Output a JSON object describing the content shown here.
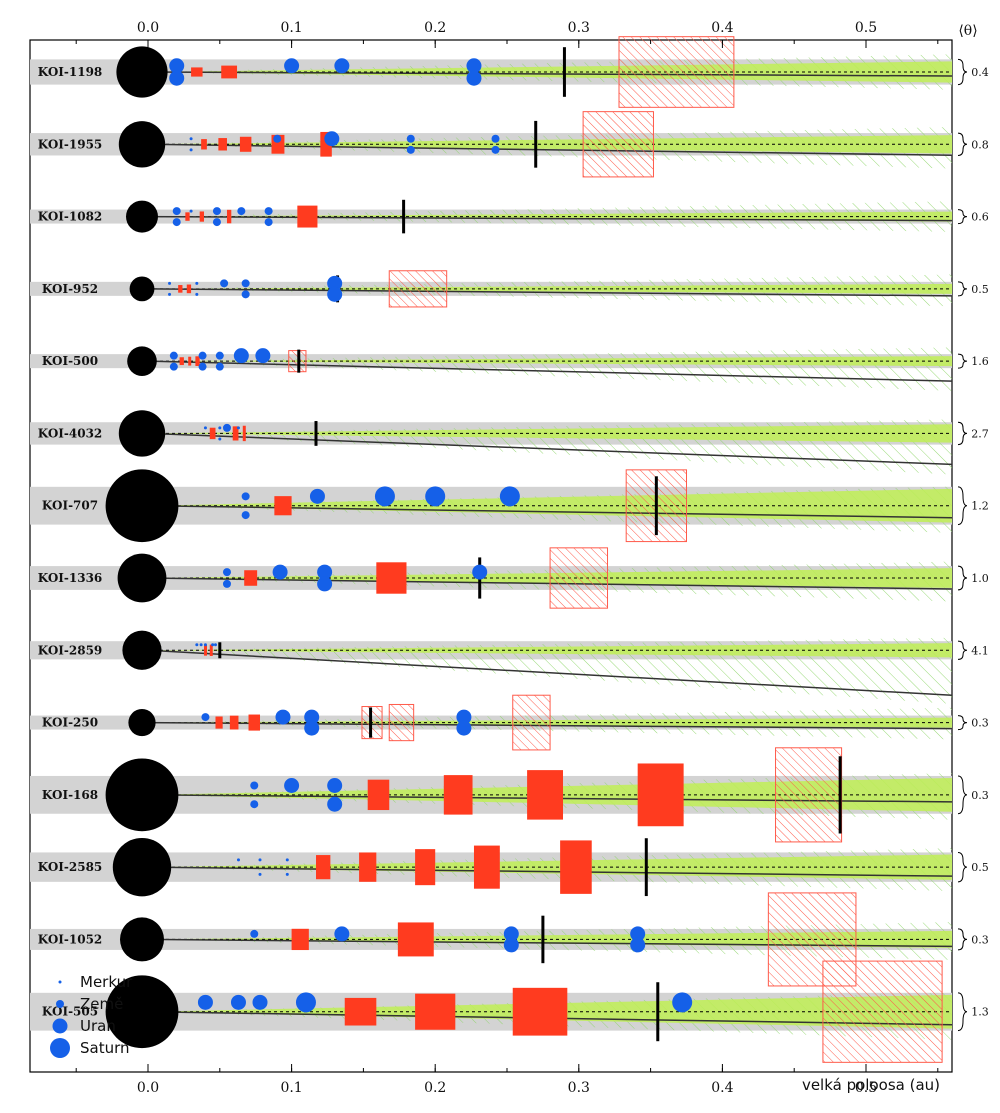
{
  "chart_data": {
    "type": "scatter",
    "title": "",
    "xlabel": "velká poloosa (au)",
    "ylabel": "",
    "xlim": [
      -0.08,
      0.56
    ],
    "x_ticks": [
      0.0,
      0.1,
      0.2,
      0.3,
      0.4,
      0.5
    ],
    "x_tick_labels": [
      "0.0",
      "0.1",
      "0.2",
      "0.3",
      "0.4",
      "0.5"
    ],
    "theta_header": "⟨θ⟩",
    "colors": {
      "band": "#d3d3d3",
      "zone": "#bfee55",
      "box": "#ff3b1f",
      "hatch": "#ff5a4a",
      "planet": "#1560e8",
      "star": "#000000",
      "green_hatch": "#8fd66a"
    },
    "legend": [
      {
        "label": "Merkur",
        "size": 1
      },
      {
        "label": "Země",
        "size": 2
      },
      {
        "label": "Uran",
        "size": 3
      },
      {
        "label": "Saturn",
        "size": 4
      }
    ],
    "systems": [
      {
        "name": "KOI-1198",
        "theta": "0.4",
        "star": 1.8,
        "planets": [
          [
            0.02,
            3
          ],
          [
            0.02,
            3
          ],
          [
            0.1,
            3
          ],
          [
            0.135,
            3
          ],
          [
            0.227,
            3
          ],
          [
            0.227,
            3
          ]
        ],
        "boxes": [
          [
            0.03,
            0.038
          ],
          [
            0.051,
            0.062
          ]
        ],
        "hz": [
          0.328,
          0.408
        ],
        "edge": 0.29,
        "lean": 0.0
      },
      {
        "name": "KOI-1955",
        "theta": "0.8",
        "star": 1.6,
        "planets": [
          [
            0.03,
            1
          ],
          [
            0.03,
            1
          ],
          [
            0.09,
            2
          ],
          [
            0.128,
            3
          ],
          [
            0.183,
            2
          ],
          [
            0.183,
            2
          ],
          [
            0.242,
            2
          ],
          [
            0.242,
            2
          ]
        ],
        "boxes": [
          [
            0.037,
            0.041
          ],
          [
            0.049,
            0.055
          ],
          [
            0.064,
            0.072
          ],
          [
            0.086,
            0.095
          ],
          [
            0.12,
            0.128
          ]
        ],
        "hz": [
          0.303,
          0.352
        ],
        "edge": 0.27,
        "lean": 0.7
      },
      {
        "name": "KOI-1082",
        "theta": "0.6",
        "star": 1.0,
        "planets": [
          [
            0.02,
            2
          ],
          [
            0.02,
            2
          ],
          [
            0.03,
            1
          ],
          [
            0.048,
            2
          ],
          [
            0.048,
            2
          ],
          [
            0.065,
            2
          ],
          [
            0.084,
            2
          ],
          [
            0.084,
            2
          ]
        ],
        "boxes": [
          [
            0.026,
            0.029
          ],
          [
            0.036,
            0.039
          ],
          [
            0.055,
            0.058
          ],
          [
            0.104,
            0.118
          ]
        ],
        "hz": null,
        "edge": 0.178,
        "lean": 0.0
      },
      {
        "name": "KOI-952",
        "theta": "0.5",
        "star": 0.7,
        "planets": [
          [
            0.015,
            1
          ],
          [
            0.015,
            1
          ],
          [
            0.034,
            1
          ],
          [
            0.034,
            1
          ],
          [
            0.053,
            2
          ],
          [
            0.068,
            2
          ],
          [
            0.068,
            2
          ],
          [
            0.13,
            3
          ],
          [
            0.13,
            3
          ]
        ],
        "boxes": [
          [
            0.021,
            0.024
          ],
          [
            0.027,
            0.03
          ]
        ],
        "hz": [
          0.168,
          0.208
        ],
        "edge": 0.132,
        "lean": 0.3
      },
      {
        "name": "KOI-500",
        "theta": "1.6",
        "star": 0.9,
        "planets": [
          [
            0.018,
            2
          ],
          [
            0.018,
            2
          ],
          [
            0.038,
            2
          ],
          [
            0.038,
            2
          ],
          [
            0.05,
            2
          ],
          [
            0.05,
            2
          ],
          [
            0.065,
            3
          ],
          [
            0.08,
            3
          ]
        ],
        "boxes": [
          [
            0.022,
            0.025
          ],
          [
            0.028,
            0.03
          ],
          [
            0.033,
            0.036
          ]
        ],
        "hz": [
          0.098,
          0.11
        ],
        "edge": 0.105,
        "lean": 1.6
      },
      {
        "name": "KOI-4032",
        "theta": "2.7",
        "star": 1.6,
        "planets": [
          [
            0.04,
            1
          ],
          [
            0.05,
            1
          ],
          [
            0.05,
            1
          ],
          [
            0.055,
            2
          ],
          [
            0.063,
            1
          ]
        ],
        "boxes": [
          [
            0.043,
            0.047
          ],
          [
            0.059,
            0.063
          ],
          [
            0.066,
            0.068
          ]
        ],
        "hz": null,
        "edge": 0.117,
        "lean": 2.7
      },
      {
        "name": "KOI-707",
        "theta": "1.2",
        "star": 2.7,
        "planets": [
          [
            0.068,
            2
          ],
          [
            0.068,
            2
          ],
          [
            0.118,
            3
          ],
          [
            0.165,
            4
          ],
          [
            0.2,
            4
          ],
          [
            0.252,
            4
          ]
        ],
        "boxes": [
          [
            0.088,
            0.1
          ]
        ],
        "hz": [
          0.333,
          0.375
        ],
        "edge": 0.354,
        "lean": 0.8
      },
      {
        "name": "KOI-1336",
        "theta": "1.0",
        "star": 1.7,
        "planets": [
          [
            0.055,
            2
          ],
          [
            0.055,
            2
          ],
          [
            0.092,
            3
          ],
          [
            0.123,
            3
          ],
          [
            0.123,
            3
          ],
          [
            0.231,
            3
          ]
        ],
        "boxes": [
          [
            0.067,
            0.076
          ],
          [
            0.159,
            0.18
          ]
        ],
        "hz": [
          0.28,
          0.32
        ],
        "edge": 0.231,
        "lean": 0.7
      },
      {
        "name": "KOI-2859",
        "theta": "4.1",
        "star": 1.3,
        "planets": [
          [
            0.034,
            1
          ],
          [
            0.037,
            1
          ],
          [
            0.04,
            1
          ],
          [
            0.045,
            1
          ],
          [
            0.047,
            1
          ]
        ],
        "boxes": [
          [
            0.039,
            0.041
          ],
          [
            0.043,
            0.045
          ]
        ],
        "hz": null,
        "edge": 0.05,
        "lean": 4.1
      },
      {
        "name": "KOI-250",
        "theta": "0.3",
        "star": 0.8,
        "planets": [
          [
            0.04,
            2
          ],
          [
            0.094,
            3
          ],
          [
            0.114,
            3
          ],
          [
            0.114,
            3
          ],
          [
            0.22,
            3
          ],
          [
            0.22,
            3
          ]
        ],
        "boxes": [
          [
            0.047,
            0.052
          ],
          [
            0.057,
            0.063
          ],
          [
            0.07,
            0.078
          ]
        ],
        "hz": [
          0.149,
          0.163,
          0.168,
          0.185,
          0.254,
          0.28
        ],
        "edge": 0.155,
        "lean": 0.2
      },
      {
        "name": "KOI-168",
        "theta": "0.3",
        "star": 2.7,
        "planets": [
          [
            0.074,
            2
          ],
          [
            0.074,
            2
          ],
          [
            0.1,
            3
          ],
          [
            0.13,
            3
          ],
          [
            0.13,
            3
          ]
        ],
        "boxes": [
          [
            0.153,
            0.168
          ],
          [
            0.206,
            0.226
          ],
          [
            0.264,
            0.289
          ],
          [
            0.341,
            0.373
          ]
        ],
        "hz": [
          0.437,
          0.483
        ],
        "edge": 0.482,
        "lean": 0.3
      },
      {
        "name": "KOI-2585",
        "theta": "0.5",
        "star": 2.1,
        "planets": [
          [
            0.063,
            1
          ],
          [
            0.078,
            1
          ],
          [
            0.078,
            1
          ],
          [
            0.097,
            1
          ],
          [
            0.097,
            1
          ]
        ],
        "boxes": [
          [
            0.117,
            0.127
          ],
          [
            0.147,
            0.159
          ],
          [
            0.186,
            0.2
          ],
          [
            0.227,
            0.245
          ],
          [
            0.287,
            0.309
          ]
        ],
        "hz": null,
        "edge": 0.347,
        "lean": 0.5
      },
      {
        "name": "KOI-1052",
        "theta": "0.3",
        "star": 1.5,
        "planets": [
          [
            0.074,
            2
          ],
          [
            0.135,
            3
          ],
          [
            0.253,
            3
          ],
          [
            0.253,
            3
          ],
          [
            0.341,
            3
          ],
          [
            0.341,
            3
          ]
        ],
        "boxes": [
          [
            0.1,
            0.112
          ],
          [
            0.174,
            0.199
          ]
        ],
        "hz": [
          0.432,
          0.493
        ],
        "edge": 0.275,
        "lean": 0.3
      },
      {
        "name": "KOI-505",
        "theta": "1.3",
        "star": 2.7,
        "planets": [
          [
            0.04,
            3
          ],
          [
            0.078,
            3
          ],
          [
            0.063,
            3
          ],
          [
            0.11,
            4
          ],
          [
            0.372,
            4
          ]
        ],
        "boxes": [
          [
            0.137,
            0.159
          ],
          [
            0.186,
            0.214
          ],
          [
            0.254,
            0.292
          ]
        ],
        "hz": [
          0.47,
          0.553
        ],
        "edge": 0.355,
        "lean": 0.9
      }
    ]
  }
}
